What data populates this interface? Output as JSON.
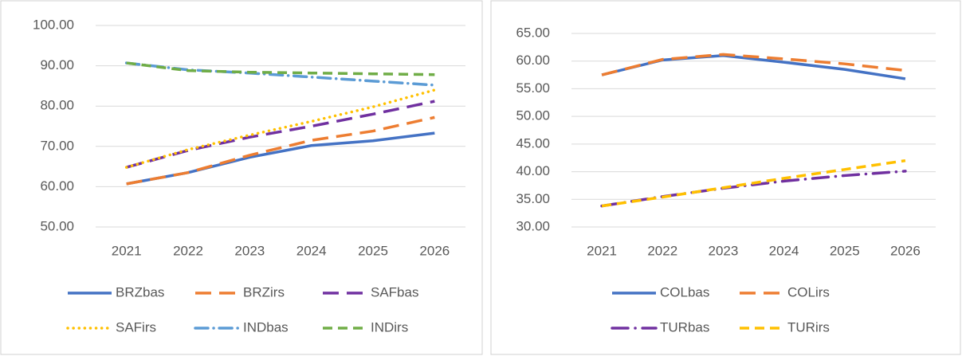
{
  "chart_data": [
    {
      "type": "line",
      "categories": [
        "2021",
        "2022",
        "2023",
        "2024",
        "2025",
        "2026"
      ],
      "ylim": [
        50,
        100
      ],
      "yticks": [
        {
          "value": 50,
          "label": "50.00"
        },
        {
          "value": 60,
          "label": "60.00"
        },
        {
          "value": 70,
          "label": "70.00"
        },
        {
          "value": 80,
          "label": "80.00"
        },
        {
          "value": 90,
          "label": "90.00"
        },
        {
          "value": 100,
          "label": "100.00"
        }
      ],
      "grid": true,
      "series": [
        {
          "name": "BRZbas",
          "color": "#4472c4",
          "dash": "solid",
          "values": [
            60.7,
            63.5,
            67.3,
            70.2,
            71.4,
            73.3
          ]
        },
        {
          "name": "BRZirs",
          "color": "#ed7d31",
          "dash": "longdash",
          "values": [
            60.7,
            63.5,
            67.8,
            71.5,
            73.8,
            77.2
          ]
        },
        {
          "name": "SAFbas",
          "color": "#7030a0",
          "dash": "longdash",
          "values": [
            64.8,
            69.0,
            72.3,
            75.0,
            78.0,
            81.2
          ]
        },
        {
          "name": "SAFirs",
          "color": "#ffc000",
          "dash": "dot",
          "values": [
            64.8,
            69.2,
            72.8,
            76.2,
            79.8,
            84.0
          ]
        },
        {
          "name": "INDbas",
          "color": "#5b9bd5",
          "dash": "dashdot",
          "values": [
            90.7,
            89.0,
            88.2,
            87.2,
            86.2,
            85.2
          ]
        },
        {
          "name": "INDirs",
          "color": "#70ad47",
          "dash": "dash",
          "values": [
            90.7,
            88.8,
            88.4,
            88.2,
            88.0,
            87.8
          ]
        }
      ]
    },
    {
      "type": "line",
      "categories": [
        "2021",
        "2022",
        "2023",
        "2024",
        "2025",
        "2026"
      ],
      "ylim": [
        30,
        65
      ],
      "yticks": [
        {
          "value": 30,
          "label": "30.00"
        },
        {
          "value": 35,
          "label": "35.00"
        },
        {
          "value": 40,
          "label": "40.00"
        },
        {
          "value": 45,
          "label": "45.00"
        },
        {
          "value": 50,
          "label": "50.00"
        },
        {
          "value": 55,
          "label": "55.00"
        },
        {
          "value": 60,
          "label": "60.00"
        },
        {
          "value": 65,
          "label": "65.00"
        }
      ],
      "grid": true,
      "series": [
        {
          "name": "COLbas",
          "color": "#4472c4",
          "dash": "solid",
          "values": [
            57.5,
            60.2,
            61.0,
            59.8,
            58.5,
            56.8
          ]
        },
        {
          "name": "COLirs",
          "color": "#ed7d31",
          "dash": "longdash",
          "values": [
            57.5,
            60.3,
            61.2,
            60.4,
            59.5,
            58.3
          ]
        },
        {
          "name": "TURbas",
          "color": "#7030a0",
          "dash": "longdashdot",
          "values": [
            33.8,
            35.5,
            37.0,
            38.3,
            39.3,
            40.1
          ]
        },
        {
          "name": "TURirs",
          "color": "#ffc000",
          "dash": "dash",
          "values": [
            33.8,
            35.4,
            37.1,
            38.8,
            40.4,
            42.0
          ]
        }
      ]
    }
  ]
}
